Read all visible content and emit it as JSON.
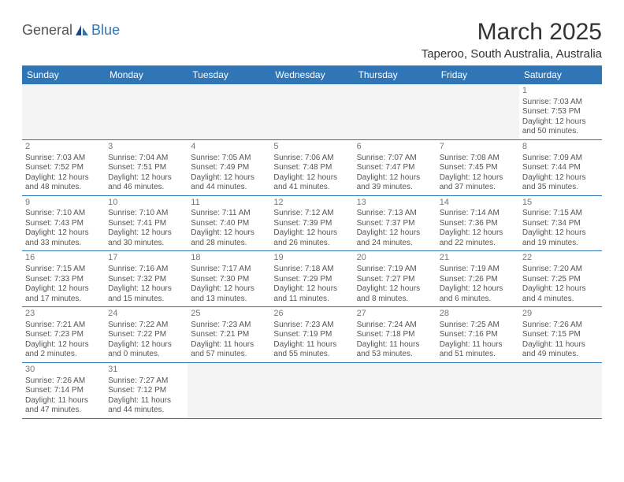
{
  "logo": {
    "general": "General",
    "blue": "Blue"
  },
  "title": "March 2025",
  "location": "Taperoo, South Australia, Australia",
  "colors": {
    "header_bg": "#3076b7",
    "header_text": "#ffffff",
    "cell_border": "#3076b7",
    "empty_bg": "#f4f4f4",
    "body_text": "#555555",
    "daynum_text": "#777777"
  },
  "weekdays": [
    "Sunday",
    "Monday",
    "Tuesday",
    "Wednesday",
    "Thursday",
    "Friday",
    "Saturday"
  ],
  "weeks": [
    [
      null,
      null,
      null,
      null,
      null,
      null,
      {
        "n": "1",
        "sr": "Sunrise: 7:03 AM",
        "ss": "Sunset: 7:53 PM",
        "d1": "Daylight: 12 hours",
        "d2": "and 50 minutes."
      }
    ],
    [
      {
        "n": "2",
        "sr": "Sunrise: 7:03 AM",
        "ss": "Sunset: 7:52 PM",
        "d1": "Daylight: 12 hours",
        "d2": "and 48 minutes."
      },
      {
        "n": "3",
        "sr": "Sunrise: 7:04 AM",
        "ss": "Sunset: 7:51 PM",
        "d1": "Daylight: 12 hours",
        "d2": "and 46 minutes."
      },
      {
        "n": "4",
        "sr": "Sunrise: 7:05 AM",
        "ss": "Sunset: 7:49 PM",
        "d1": "Daylight: 12 hours",
        "d2": "and 44 minutes."
      },
      {
        "n": "5",
        "sr": "Sunrise: 7:06 AM",
        "ss": "Sunset: 7:48 PM",
        "d1": "Daylight: 12 hours",
        "d2": "and 41 minutes."
      },
      {
        "n": "6",
        "sr": "Sunrise: 7:07 AM",
        "ss": "Sunset: 7:47 PM",
        "d1": "Daylight: 12 hours",
        "d2": "and 39 minutes."
      },
      {
        "n": "7",
        "sr": "Sunrise: 7:08 AM",
        "ss": "Sunset: 7:45 PM",
        "d1": "Daylight: 12 hours",
        "d2": "and 37 minutes."
      },
      {
        "n": "8",
        "sr": "Sunrise: 7:09 AM",
        "ss": "Sunset: 7:44 PM",
        "d1": "Daylight: 12 hours",
        "d2": "and 35 minutes."
      }
    ],
    [
      {
        "n": "9",
        "sr": "Sunrise: 7:10 AM",
        "ss": "Sunset: 7:43 PM",
        "d1": "Daylight: 12 hours",
        "d2": "and 33 minutes."
      },
      {
        "n": "10",
        "sr": "Sunrise: 7:10 AM",
        "ss": "Sunset: 7:41 PM",
        "d1": "Daylight: 12 hours",
        "d2": "and 30 minutes."
      },
      {
        "n": "11",
        "sr": "Sunrise: 7:11 AM",
        "ss": "Sunset: 7:40 PM",
        "d1": "Daylight: 12 hours",
        "d2": "and 28 minutes."
      },
      {
        "n": "12",
        "sr": "Sunrise: 7:12 AM",
        "ss": "Sunset: 7:39 PM",
        "d1": "Daylight: 12 hours",
        "d2": "and 26 minutes."
      },
      {
        "n": "13",
        "sr": "Sunrise: 7:13 AM",
        "ss": "Sunset: 7:37 PM",
        "d1": "Daylight: 12 hours",
        "d2": "and 24 minutes."
      },
      {
        "n": "14",
        "sr": "Sunrise: 7:14 AM",
        "ss": "Sunset: 7:36 PM",
        "d1": "Daylight: 12 hours",
        "d2": "and 22 minutes."
      },
      {
        "n": "15",
        "sr": "Sunrise: 7:15 AM",
        "ss": "Sunset: 7:34 PM",
        "d1": "Daylight: 12 hours",
        "d2": "and 19 minutes."
      }
    ],
    [
      {
        "n": "16",
        "sr": "Sunrise: 7:15 AM",
        "ss": "Sunset: 7:33 PM",
        "d1": "Daylight: 12 hours",
        "d2": "and 17 minutes."
      },
      {
        "n": "17",
        "sr": "Sunrise: 7:16 AM",
        "ss": "Sunset: 7:32 PM",
        "d1": "Daylight: 12 hours",
        "d2": "and 15 minutes."
      },
      {
        "n": "18",
        "sr": "Sunrise: 7:17 AM",
        "ss": "Sunset: 7:30 PM",
        "d1": "Daylight: 12 hours",
        "d2": "and 13 minutes."
      },
      {
        "n": "19",
        "sr": "Sunrise: 7:18 AM",
        "ss": "Sunset: 7:29 PM",
        "d1": "Daylight: 12 hours",
        "d2": "and 11 minutes."
      },
      {
        "n": "20",
        "sr": "Sunrise: 7:19 AM",
        "ss": "Sunset: 7:27 PM",
        "d1": "Daylight: 12 hours",
        "d2": "and 8 minutes."
      },
      {
        "n": "21",
        "sr": "Sunrise: 7:19 AM",
        "ss": "Sunset: 7:26 PM",
        "d1": "Daylight: 12 hours",
        "d2": "and 6 minutes."
      },
      {
        "n": "22",
        "sr": "Sunrise: 7:20 AM",
        "ss": "Sunset: 7:25 PM",
        "d1": "Daylight: 12 hours",
        "d2": "and 4 minutes."
      }
    ],
    [
      {
        "n": "23",
        "sr": "Sunrise: 7:21 AM",
        "ss": "Sunset: 7:23 PM",
        "d1": "Daylight: 12 hours",
        "d2": "and 2 minutes."
      },
      {
        "n": "24",
        "sr": "Sunrise: 7:22 AM",
        "ss": "Sunset: 7:22 PM",
        "d1": "Daylight: 12 hours",
        "d2": "and 0 minutes."
      },
      {
        "n": "25",
        "sr": "Sunrise: 7:23 AM",
        "ss": "Sunset: 7:21 PM",
        "d1": "Daylight: 11 hours",
        "d2": "and 57 minutes."
      },
      {
        "n": "26",
        "sr": "Sunrise: 7:23 AM",
        "ss": "Sunset: 7:19 PM",
        "d1": "Daylight: 11 hours",
        "d2": "and 55 minutes."
      },
      {
        "n": "27",
        "sr": "Sunrise: 7:24 AM",
        "ss": "Sunset: 7:18 PM",
        "d1": "Daylight: 11 hours",
        "d2": "and 53 minutes."
      },
      {
        "n": "28",
        "sr": "Sunrise: 7:25 AM",
        "ss": "Sunset: 7:16 PM",
        "d1": "Daylight: 11 hours",
        "d2": "and 51 minutes."
      },
      {
        "n": "29",
        "sr": "Sunrise: 7:26 AM",
        "ss": "Sunset: 7:15 PM",
        "d1": "Daylight: 11 hours",
        "d2": "and 49 minutes."
      }
    ],
    [
      {
        "n": "30",
        "sr": "Sunrise: 7:26 AM",
        "ss": "Sunset: 7:14 PM",
        "d1": "Daylight: 11 hours",
        "d2": "and 47 minutes."
      },
      {
        "n": "31",
        "sr": "Sunrise: 7:27 AM",
        "ss": "Sunset: 7:12 PM",
        "d1": "Daylight: 11 hours",
        "d2": "and 44 minutes."
      },
      null,
      null,
      null,
      null,
      null
    ]
  ]
}
